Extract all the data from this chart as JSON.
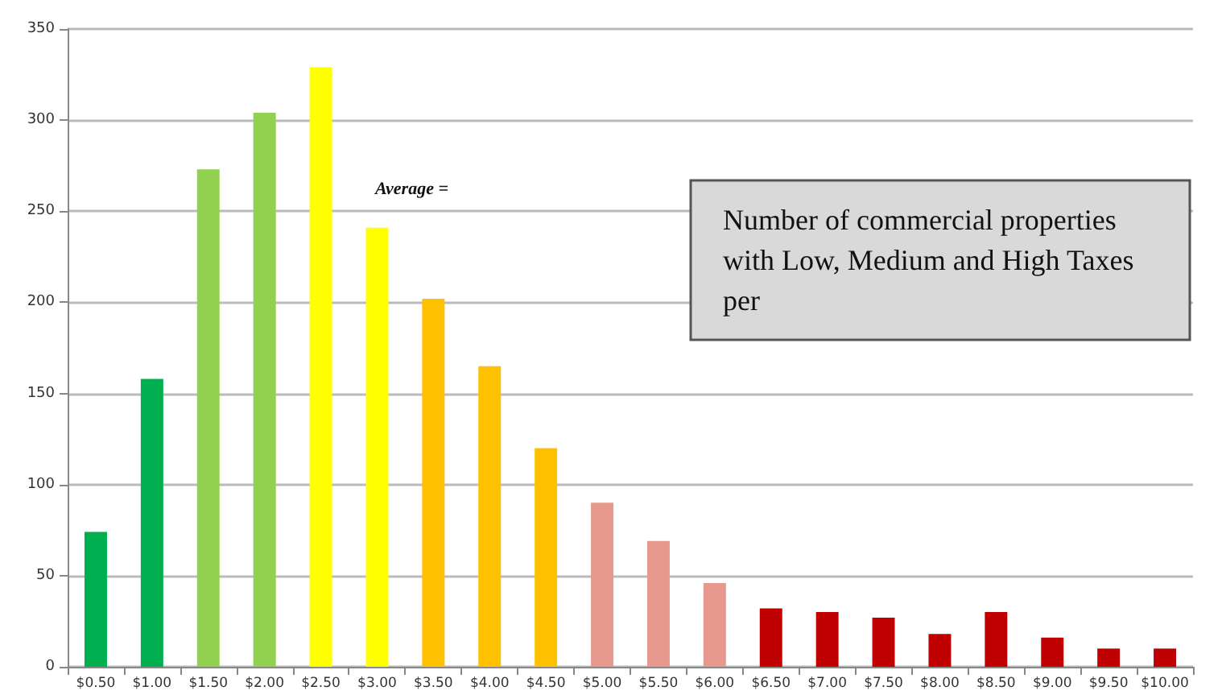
{
  "chart_data": {
    "type": "bar",
    "title": "Number of commercial properties with Low, Medium and High Taxes per",
    "annotations": [
      "Average ="
    ],
    "categories": [
      "$0.50",
      "$1.00",
      "$1.50",
      "$2.00",
      "$2.50",
      "$3.00",
      "$3.50",
      "$4.00",
      "$4.50",
      "$5.00",
      "$5.50",
      "$6.00",
      "$6.50",
      "$7.00",
      "$7.50",
      "$8.00",
      "$8.50",
      "$9.00",
      "$9.50",
      "$10.00"
    ],
    "values": [
      74,
      158,
      273,
      304,
      329,
      241,
      202,
      165,
      120,
      90,
      69,
      46,
      32,
      30,
      27,
      18,
      30,
      16,
      10,
      10
    ],
    "colors": [
      "#00b050",
      "#00b050",
      "#92d050",
      "#92d050",
      "#ffff00",
      "#ffff00",
      "#ffc000",
      "#ffc000",
      "#ffc000",
      "#e6998c",
      "#e6998c",
      "#e6998c",
      "#c00000",
      "#c00000",
      "#c00000",
      "#c00000",
      "#c00000",
      "#c00000",
      "#c00000",
      "#c00000"
    ],
    "ylim": [
      0,
      350
    ],
    "yticks": [
      0,
      50,
      100,
      150,
      200,
      250,
      300,
      350
    ],
    "grid": "y"
  }
}
